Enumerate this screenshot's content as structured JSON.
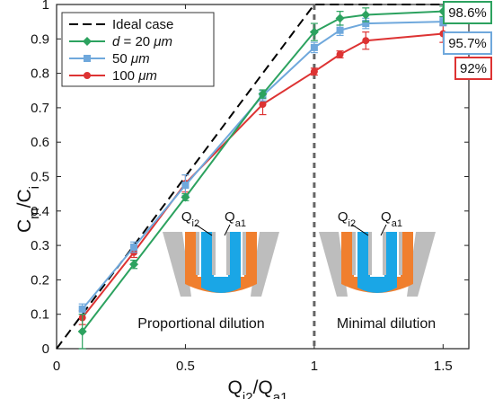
{
  "chart_data": {
    "type": "line",
    "xlabel": "Q_i2/Q_a1",
    "ylabel": "C_m/C_i",
    "xlim": [
      0,
      1.6
    ],
    "ylim": [
      0,
      1
    ],
    "xticks": [
      "0",
      "0.5",
      "1",
      "1.5"
    ],
    "yticks": [
      "0",
      "0.1",
      "0.2",
      "0.3",
      "0.4",
      "0.5",
      "0.6",
      "0.7",
      "0.8",
      "0.9",
      "1"
    ],
    "grid": false,
    "legend_position": "top-left",
    "ideal": {
      "name": "Ideal case",
      "color": "#000000",
      "x": [
        0,
        1,
        1.5
      ],
      "y": [
        0,
        1,
        1
      ]
    },
    "series": [
      {
        "name": "d = 20 μm",
        "color": "#2ca25f",
        "marker": "diamond",
        "x": [
          0.1,
          0.3,
          0.5,
          0.8,
          1.0,
          1.1,
          1.2,
          1.5
        ],
        "y": [
          0.05,
          0.245,
          0.44,
          0.74,
          0.92,
          0.96,
          0.97,
          0.98
        ],
        "err": [
          0.05,
          0.012,
          0.01,
          0.012,
          0.025,
          0.02,
          0.02,
          0.015
        ]
      },
      {
        "name": "50 μm",
        "color": "#6fa8dc",
        "marker": "square",
        "x": [
          0.1,
          0.3,
          0.5,
          0.8,
          1.0,
          1.1,
          1.2,
          1.5
        ],
        "y": [
          0.115,
          0.295,
          0.475,
          0.735,
          0.875,
          0.925,
          0.945,
          0.95
        ],
        "err": [
          0.015,
          0.015,
          0.03,
          0.015,
          0.015,
          0.015,
          0.015,
          0.012
        ]
      },
      {
        "name": "100 μm",
        "color": "#dd3333",
        "marker": "circle",
        "x": [
          0.1,
          0.3,
          0.5,
          0.8,
          1.0,
          1.1,
          1.2,
          1.5
        ],
        "y": [
          0.09,
          0.28,
          0.48,
          0.71,
          0.805,
          0.855,
          0.895,
          0.915
        ],
        "err": [
          0.02,
          0.015,
          0.025,
          0.03,
          0.01,
          0.01,
          0.025,
          0.025
        ]
      }
    ],
    "divider_x": 1,
    "callouts": [
      {
        "text": "98.6%",
        "color": "#2ca25f"
      },
      {
        "text": "95.7%",
        "color": "#6fa8dc"
      },
      {
        "text": "92%",
        "color": "#dd3333"
      }
    ],
    "regions": [
      {
        "label": "Proportional dilution"
      },
      {
        "label": "Minimal dilution"
      }
    ],
    "insets": [
      {
        "q_left": "Q",
        "q_left_sub": "i2",
        "q_right": "Q",
        "q_right_sub": "a1"
      },
      {
        "q_left": "Q",
        "q_left_sub": "i2",
        "q_right": "Q",
        "q_right_sub": "a1"
      }
    ],
    "inset_colors": {
      "wall": "#bdbdbd",
      "orange": "#f07f2e",
      "blue": "#1aa6e6"
    }
  }
}
